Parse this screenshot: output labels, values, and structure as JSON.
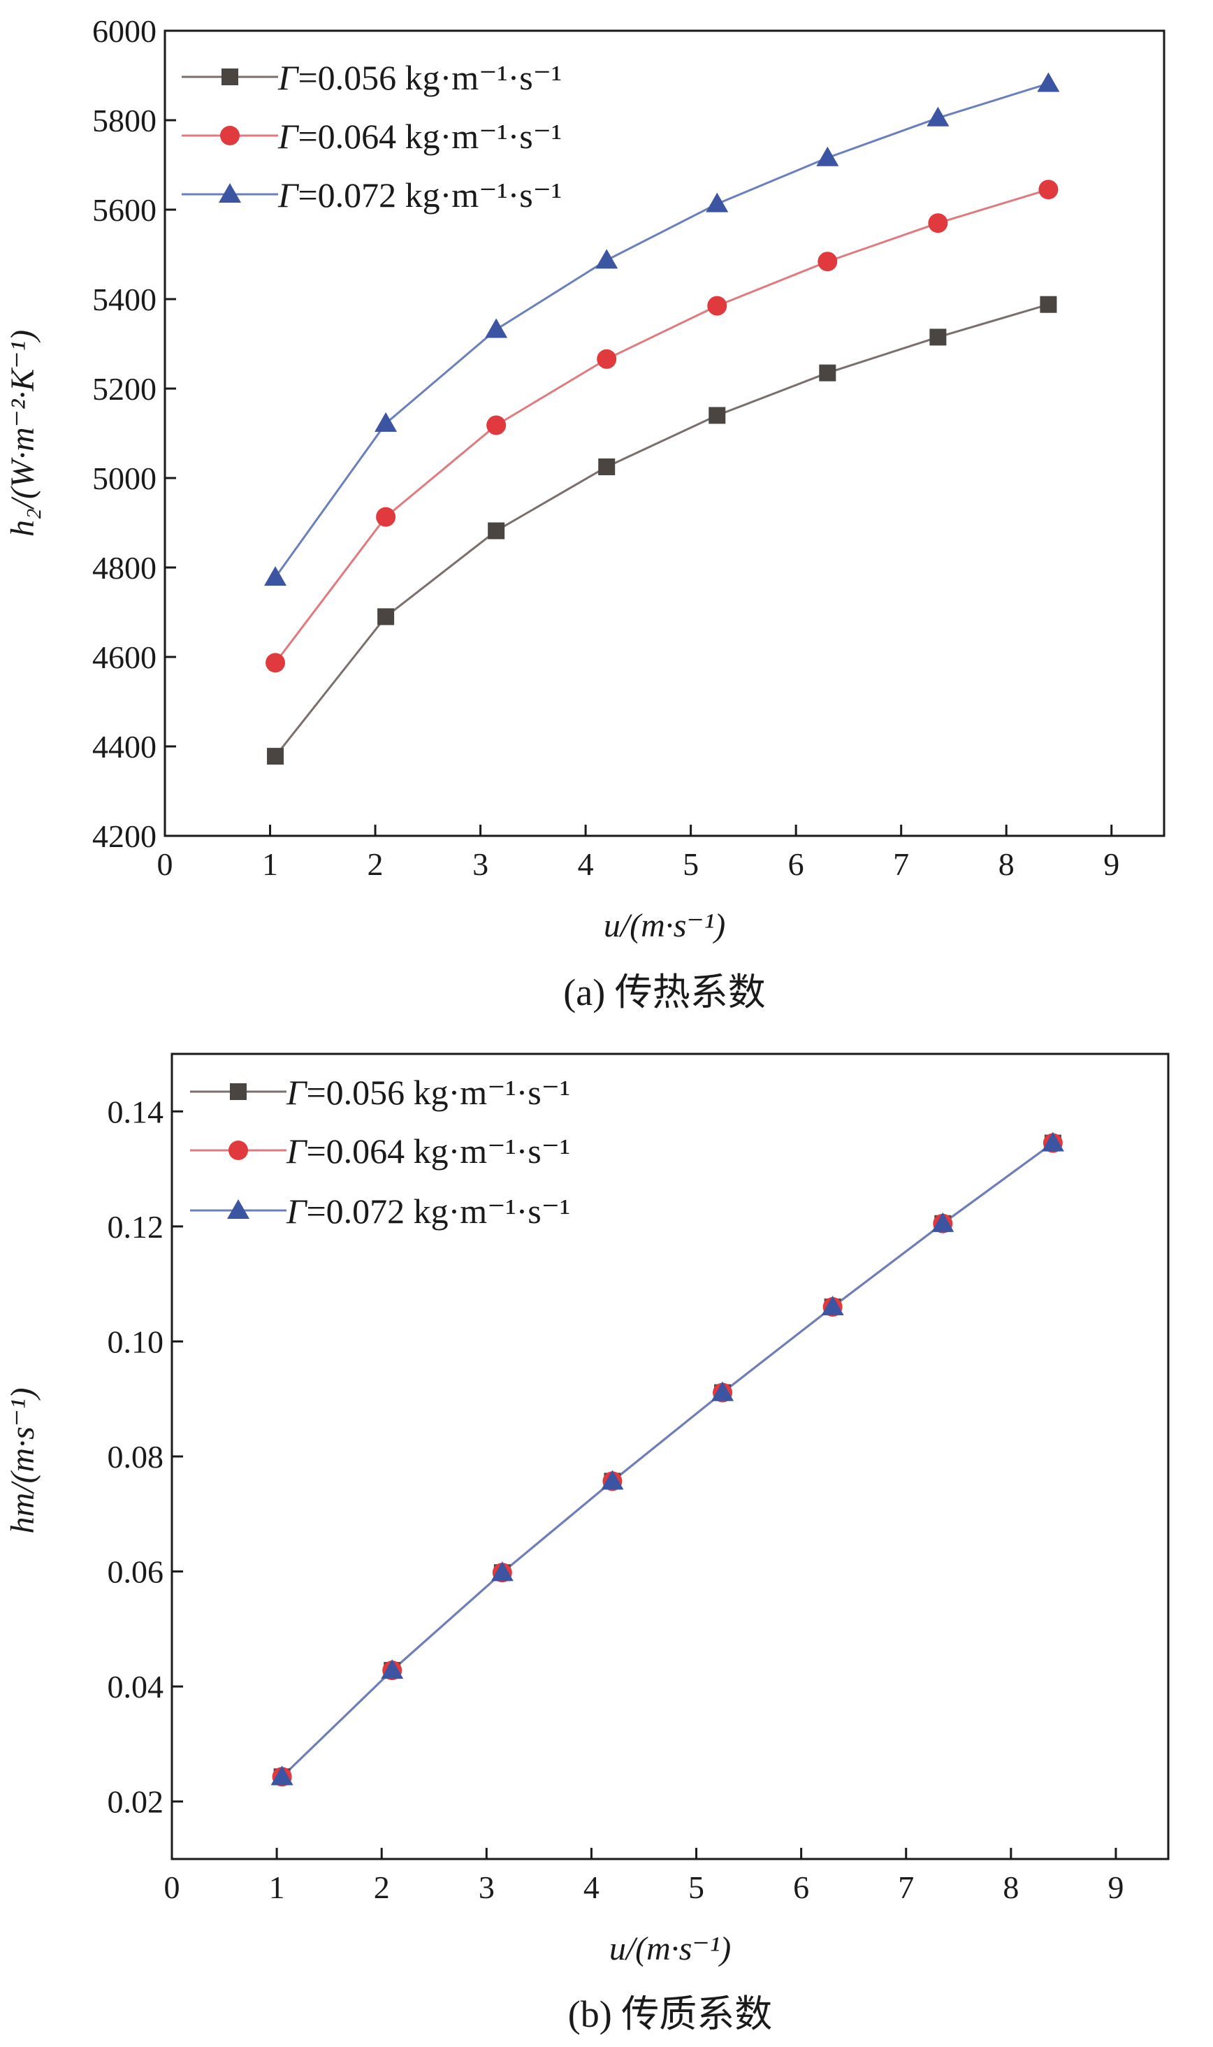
{
  "colors": {
    "gamma_056": "#4a4541",
    "gamma_064": "#e0393e",
    "gamma_072": "#3b55a3",
    "line_056": "#7a6f6a",
    "line_064": "#e07a7e",
    "line_072": "#6a7fbd"
  },
  "chart_data": [
    {
      "type": "line",
      "caption": "(a) 传热系数",
      "xlabel": "u/(m·s⁻¹)",
      "ylabel": "h₂/(W·m⁻²·K⁻¹)",
      "xlim": [
        0,
        9.5
      ],
      "ylim": [
        4200,
        6000
      ],
      "xticks": [
        "0",
        "1",
        "2",
        "3",
        "4",
        "5",
        "6",
        "7",
        "8",
        "9"
      ],
      "yticks": [
        "4200",
        "4400",
        "4600",
        "4800",
        "5000",
        "5200",
        "5400",
        "5600",
        "5800",
        "6000"
      ],
      "legend_position": "top-left",
      "x": [
        1.05,
        2.1,
        3.15,
        4.2,
        5.25,
        6.3,
        7.35,
        8.4
      ],
      "series": [
        {
          "name": "Γ=0.056 kg·m⁻¹·s⁻¹",
          "gamma": "Γ",
          "label_rest": "=0.056 kg·m⁻¹·s⁻¹",
          "marker": "square",
          "values": [
            4378,
            4690,
            4882,
            5025,
            5140,
            5235,
            5315,
            5388
          ]
        },
        {
          "name": "Γ=0.064 kg·m⁻¹·s⁻¹",
          "gamma": "Γ",
          "label_rest": "=0.064 kg·m⁻¹·s⁻¹",
          "marker": "circle",
          "values": [
            4587,
            4913,
            5118,
            5266,
            5385,
            5484,
            5570,
            5645
          ]
        },
        {
          "name": "Γ=0.072 kg·m⁻¹·s⁻¹",
          "gamma": "Γ",
          "label_rest": "=0.072 kg·m⁻¹·s⁻¹",
          "marker": "triangle",
          "values": [
            4778,
            5122,
            5332,
            5487,
            5613,
            5716,
            5805,
            5882
          ]
        }
      ]
    },
    {
      "type": "line",
      "caption": "(b) 传质系数",
      "xlabel": "u/(m·s⁻¹)",
      "ylabel": "hm/(m·s⁻¹)",
      "xlim": [
        0,
        9.5
      ],
      "ylim": [
        0.01,
        0.15
      ],
      "xticks": [
        "0",
        "1",
        "2",
        "3",
        "4",
        "5",
        "6",
        "7",
        "8",
        "9"
      ],
      "yticks": [
        "0.02",
        "0.04",
        "0.06",
        "0.08",
        "0.10",
        "0.12",
        "0.14"
      ],
      "legend_position": "top-left",
      "x": [
        1.05,
        2.1,
        3.15,
        4.2,
        5.25,
        6.3,
        7.35,
        8.4
      ],
      "series": [
        {
          "name": "Γ=0.056 kg·m⁻¹·s⁻¹",
          "gamma": "Γ",
          "label_rest": "=0.056 kg·m⁻¹·s⁻¹",
          "marker": "square",
          "values": [
            0.0243,
            0.0428,
            0.0598,
            0.0757,
            0.0911,
            0.106,
            0.1205,
            0.1345
          ]
        },
        {
          "name": "Γ=0.064 kg·m⁻¹·s⁻¹",
          "gamma": "Γ",
          "label_rest": "=0.064 kg·m⁻¹·s⁻¹",
          "marker": "circle",
          "values": [
            0.0243,
            0.0428,
            0.0598,
            0.0757,
            0.0911,
            0.106,
            0.1205,
            0.1345
          ]
        },
        {
          "name": "Γ=0.072 kg·m⁻¹·s⁻¹",
          "gamma": "Γ",
          "label_rest": "=0.072 kg·m⁻¹·s⁻¹",
          "marker": "triangle",
          "values": [
            0.0243,
            0.0428,
            0.0598,
            0.0757,
            0.0911,
            0.106,
            0.1205,
            0.1345
          ]
        }
      ]
    }
  ]
}
